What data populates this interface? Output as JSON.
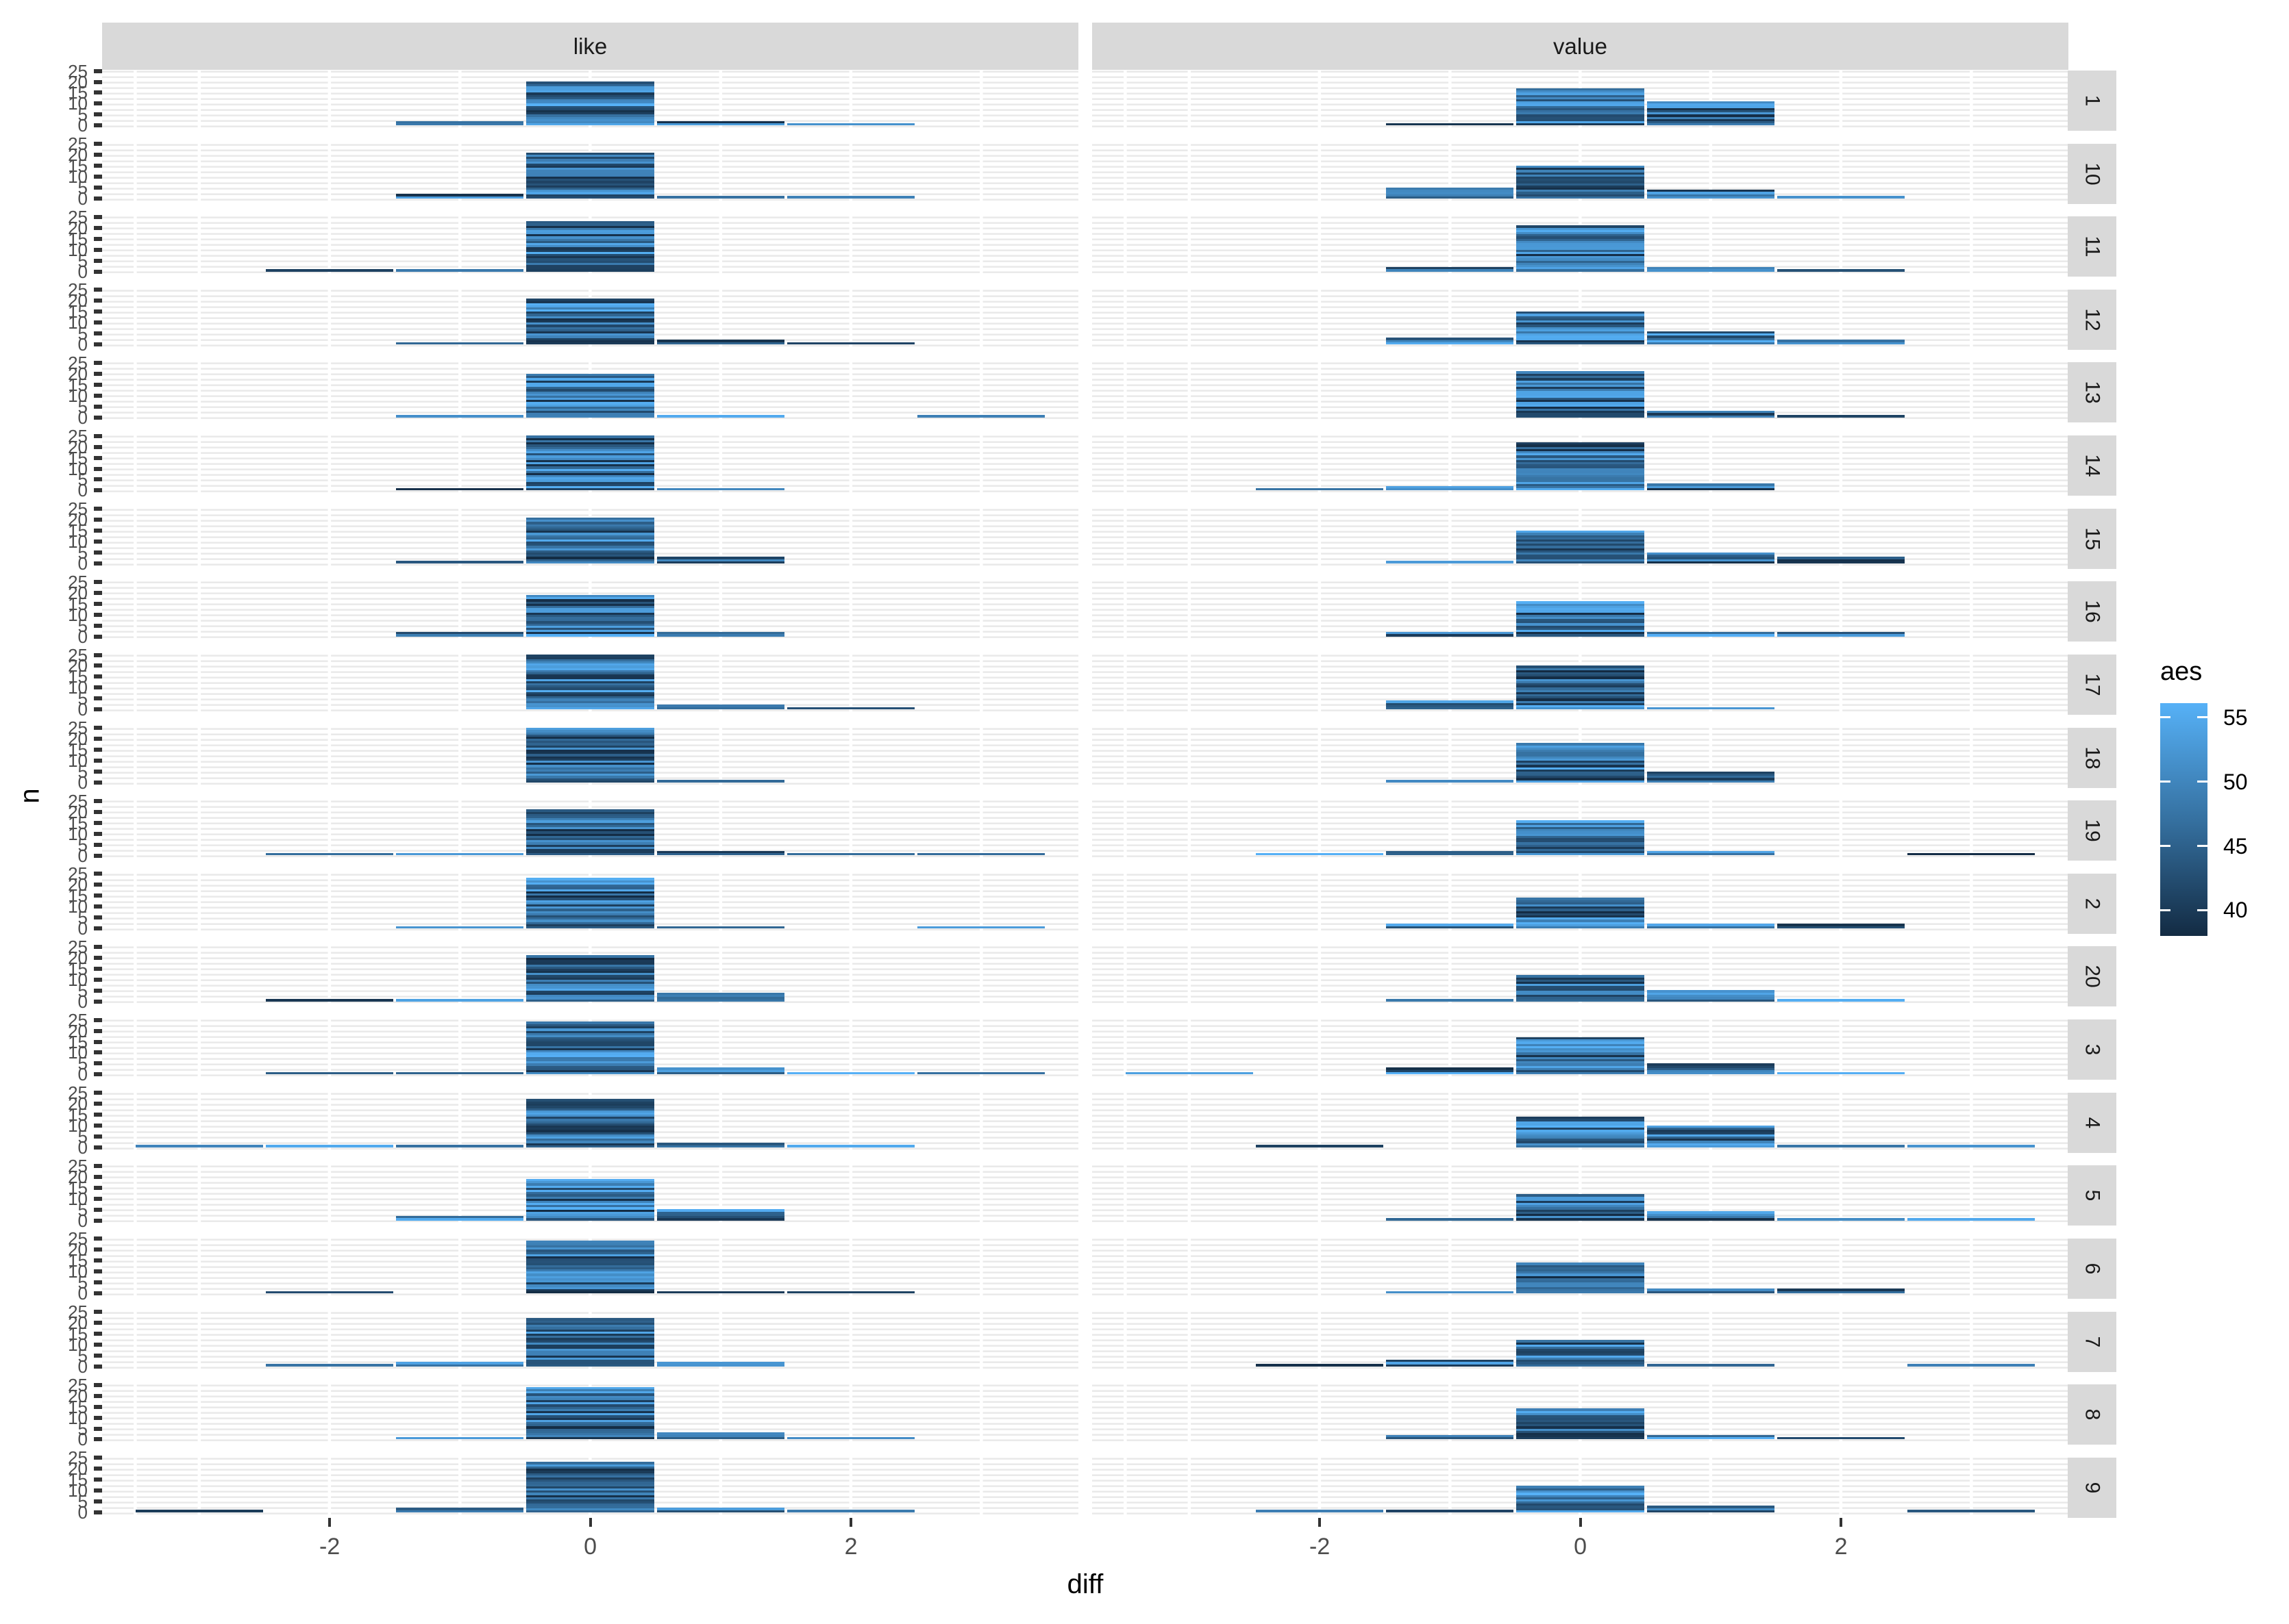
{
  "facet_columns": [
    "like",
    "value"
  ],
  "facet_rows": [
    "1",
    "10",
    "11",
    "12",
    "13",
    "14",
    "15",
    "16",
    "17",
    "18",
    "19",
    "2",
    "20",
    "3",
    "4",
    "5",
    "6",
    "7",
    "8",
    "9"
  ],
  "axes": {
    "x_title": "diff",
    "y_title": "n",
    "x_ticks": [
      -2,
      0,
      2
    ],
    "y_ticks": [
      0,
      5,
      10,
      15,
      20,
      25
    ],
    "x_range": [
      -3.746,
      3.746
    ],
    "y_range": [
      0,
      25
    ]
  },
  "legend": {
    "title": "aes",
    "ticks": [
      55,
      50,
      45,
      40
    ],
    "value_min": 38,
    "value_max": 56.1,
    "low_color": "#132B43",
    "high_color": "#56B1F7",
    "mid_color": "#346E9D"
  },
  "style": {
    "strip_bg": "#D9D9D9",
    "strip_text": "#1A1A1A",
    "grid_color": "#E9E9E9",
    "tick_mark_color": "#333333",
    "tick_label_color": "#4D4D4D",
    "panel_bg": "#FFFFFF"
  },
  "chart_data": {
    "type": "bar",
    "x_variable": "diff",
    "y_variable": "n",
    "fill_variable": "aes",
    "bin_width": 1,
    "note": "stacked unit segments, each unit colored by continuous aes value 38-56",
    "panels": [
      {
        "row": "1",
        "like": [
          [
            -1,
            2
          ],
          [
            0,
            20
          ],
          [
            1,
            2
          ],
          [
            2,
            1
          ]
        ],
        "value": [
          [
            -1,
            1
          ],
          [
            0,
            17
          ],
          [
            1,
            11
          ]
        ]
      },
      {
        "row": "10",
        "like": [
          [
            -1,
            2
          ],
          [
            0,
            21
          ],
          [
            1,
            1
          ],
          [
            2,
            1
          ]
        ],
        "value": [
          [
            -1,
            5
          ],
          [
            0,
            15
          ],
          [
            1,
            4
          ],
          [
            2,
            1
          ]
        ]
      },
      {
        "row": "11",
        "like": [
          [
            -2,
            1
          ],
          [
            -1,
            1
          ],
          [
            0,
            23
          ]
        ],
        "value": [
          [
            -1,
            2
          ],
          [
            0,
            21
          ],
          [
            1,
            2
          ],
          [
            2,
            1
          ]
        ]
      },
      {
        "row": "12",
        "like": [
          [
            -1,
            1
          ],
          [
            0,
            21
          ],
          [
            1,
            2
          ],
          [
            2,
            1
          ]
        ],
        "value": [
          [
            -1,
            3
          ],
          [
            0,
            15
          ],
          [
            1,
            6
          ],
          [
            2,
            2
          ]
        ]
      },
      {
        "row": "13",
        "like": [
          [
            -1,
            1
          ],
          [
            0,
            20
          ],
          [
            1,
            1
          ],
          [
            3,
            1
          ]
        ],
        "value": [
          [
            0,
            21
          ],
          [
            1,
            3
          ],
          [
            2,
            1
          ]
        ]
      },
      {
        "row": "14",
        "like": [
          [
            -1,
            1
          ],
          [
            0,
            25
          ],
          [
            1,
            1
          ]
        ],
        "value": [
          [
            -2,
            1
          ],
          [
            -1,
            2
          ],
          [
            0,
            22
          ],
          [
            1,
            3
          ]
        ]
      },
      {
        "row": "15",
        "like": [
          [
            -1,
            1
          ],
          [
            0,
            21
          ],
          [
            1,
            3
          ]
        ],
        "value": [
          [
            -1,
            1
          ],
          [
            0,
            15
          ],
          [
            1,
            5
          ],
          [
            2,
            3
          ]
        ]
      },
      {
        "row": "16",
        "like": [
          [
            -1,
            2
          ],
          [
            0,
            19
          ],
          [
            1,
            2
          ]
        ],
        "value": [
          [
            -1,
            2
          ],
          [
            0,
            16
          ],
          [
            1,
            2
          ],
          [
            2,
            2
          ]
        ]
      },
      {
        "row": "17",
        "like": [
          [
            0,
            25
          ],
          [
            1,
            2
          ],
          [
            2,
            1
          ]
        ],
        "value": [
          [
            -1,
            4
          ],
          [
            0,
            20
          ],
          [
            1,
            1
          ]
        ]
      },
      {
        "row": "18",
        "like": [
          [
            0,
            25
          ],
          [
            1,
            1
          ]
        ],
        "value": [
          [
            -1,
            1
          ],
          [
            0,
            18
          ],
          [
            1,
            5
          ]
        ]
      },
      {
        "row": "19",
        "like": [
          [
            -2,
            1
          ],
          [
            -1,
            1
          ],
          [
            0,
            21
          ],
          [
            1,
            2
          ],
          [
            2,
            1
          ],
          [
            3,
            1
          ]
        ],
        "value": [
          [
            -2,
            1
          ],
          [
            -1,
            2
          ],
          [
            0,
            16
          ],
          [
            1,
            2
          ],
          [
            3,
            1
          ]
        ]
      },
      {
        "row": "2",
        "like": [
          [
            -1,
            1
          ],
          [
            0,
            23
          ],
          [
            1,
            1
          ],
          [
            3,
            1
          ]
        ],
        "value": [
          [
            -1,
            2
          ],
          [
            0,
            14
          ],
          [
            1,
            2
          ],
          [
            2,
            2
          ]
        ]
      },
      {
        "row": "20",
        "like": [
          [
            -2,
            1
          ],
          [
            -1,
            1
          ],
          [
            0,
            21
          ],
          [
            1,
            4
          ]
        ],
        "value": [
          [
            -1,
            1
          ],
          [
            0,
            12
          ],
          [
            1,
            5
          ],
          [
            2,
            1
          ]
        ]
      },
      {
        "row": "3",
        "like": [
          [
            -2,
            1
          ],
          [
            -1,
            1
          ],
          [
            0,
            24
          ],
          [
            1,
            3
          ],
          [
            2,
            1
          ],
          [
            3,
            1
          ]
        ],
        "value": [
          [
            -3,
            1
          ],
          [
            -1,
            3
          ],
          [
            0,
            17
          ],
          [
            1,
            5
          ],
          [
            2,
            1
          ]
        ]
      },
      {
        "row": "4",
        "like": [
          [
            -3,
            1
          ],
          [
            -2,
            1
          ],
          [
            -1,
            1
          ],
          [
            0,
            22
          ],
          [
            1,
            2
          ],
          [
            2,
            1
          ]
        ],
        "value": [
          [
            -2,
            1
          ],
          [
            0,
            14
          ],
          [
            1,
            10
          ],
          [
            2,
            1
          ],
          [
            3,
            1
          ]
        ]
      },
      {
        "row": "5",
        "like": [
          [
            -1,
            2
          ],
          [
            0,
            19
          ],
          [
            1,
            5
          ]
        ],
        "value": [
          [
            -1,
            1
          ],
          [
            0,
            12
          ],
          [
            1,
            4
          ],
          [
            2,
            1
          ],
          [
            3,
            1
          ]
        ]
      },
      {
        "row": "6",
        "like": [
          [
            -2,
            1
          ],
          [
            0,
            24
          ],
          [
            1,
            1
          ],
          [
            2,
            1
          ]
        ],
        "value": [
          [
            -1,
            1
          ],
          [
            0,
            14
          ],
          [
            1,
            2
          ],
          [
            2,
            2
          ]
        ]
      },
      {
        "row": "7",
        "like": [
          [
            -2,
            1
          ],
          [
            -1,
            2
          ],
          [
            0,
            22
          ],
          [
            1,
            2
          ]
        ],
        "value": [
          [
            -2,
            1
          ],
          [
            -1,
            3
          ],
          [
            0,
            12
          ],
          [
            1,
            1
          ],
          [
            3,
            1
          ]
        ]
      },
      {
        "row": "8",
        "like": [
          [
            -1,
            1
          ],
          [
            0,
            24
          ],
          [
            1,
            3
          ],
          [
            2,
            1
          ]
        ],
        "value": [
          [
            -1,
            2
          ],
          [
            0,
            14
          ],
          [
            1,
            2
          ],
          [
            2,
            1
          ]
        ]
      },
      {
        "row": "9",
        "like": [
          [
            -3,
            1
          ],
          [
            -1,
            2
          ],
          [
            0,
            23
          ],
          [
            1,
            2
          ],
          [
            2,
            1
          ]
        ],
        "value": [
          [
            -2,
            1
          ],
          [
            -1,
            1
          ],
          [
            0,
            12
          ],
          [
            1,
            3
          ],
          [
            3,
            1
          ]
        ]
      }
    ]
  }
}
